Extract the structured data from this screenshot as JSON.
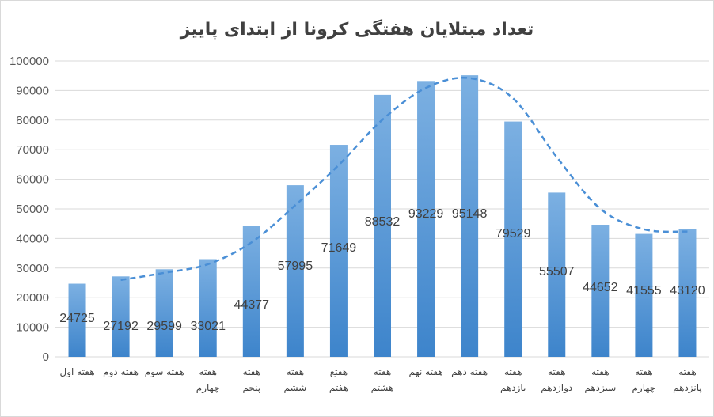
{
  "chart_data": {
    "type": "bar",
    "title": "تعداد مبتلایان هفتگی کرونا از ابتدای پاییز",
    "xlabel": "",
    "ylabel": "",
    "ylim": [
      0,
      100000
    ],
    "yticks": [
      "0",
      "10000",
      "20000",
      "30000",
      "40000",
      "50000",
      "60000",
      "70000",
      "80000",
      "90000",
      "100000"
    ],
    "grid": true,
    "categories": [
      [
        "هفته اول"
      ],
      [
        "هفته دوم"
      ],
      [
        "هفته سوم"
      ],
      [
        "هفته",
        "چهارم"
      ],
      [
        "هفته",
        "پنجم"
      ],
      [
        "هفته",
        "ششم"
      ],
      [
        "هفتع",
        "هفتم"
      ],
      [
        "هفته",
        "هشتم"
      ],
      [
        "هفته نهم"
      ],
      [
        "هفته دهم"
      ],
      [
        "هفته",
        "یازدهم"
      ],
      [
        "هفته",
        "دوازدهم"
      ],
      [
        "هفته",
        "سیزدهم"
      ],
      [
        "هفته",
        "چهارم"
      ],
      [
        "هفته",
        "پانزدهم"
      ]
    ],
    "values": [
      24725,
      27192,
      29599,
      33021,
      44377,
      57995,
      71649,
      88532,
      93229,
      95148,
      79529,
      55507,
      44652,
      41555,
      43120
    ],
    "data_labels": [
      "24725",
      "27192",
      "29599",
      "33021",
      "44377",
      "57995",
      "71649",
      "88532",
      "93229",
      "95148",
      "79529",
      "55507",
      "44652",
      "41555",
      "43120"
    ],
    "trendline": {
      "type": "2-period moving average",
      "style": "dashed"
    },
    "colors": {
      "bar_top": "#7cb0e2",
      "bar_bottom": "#3d84cb",
      "trendline": "#4a8fd6",
      "grid": "#d9d9d9"
    }
  }
}
